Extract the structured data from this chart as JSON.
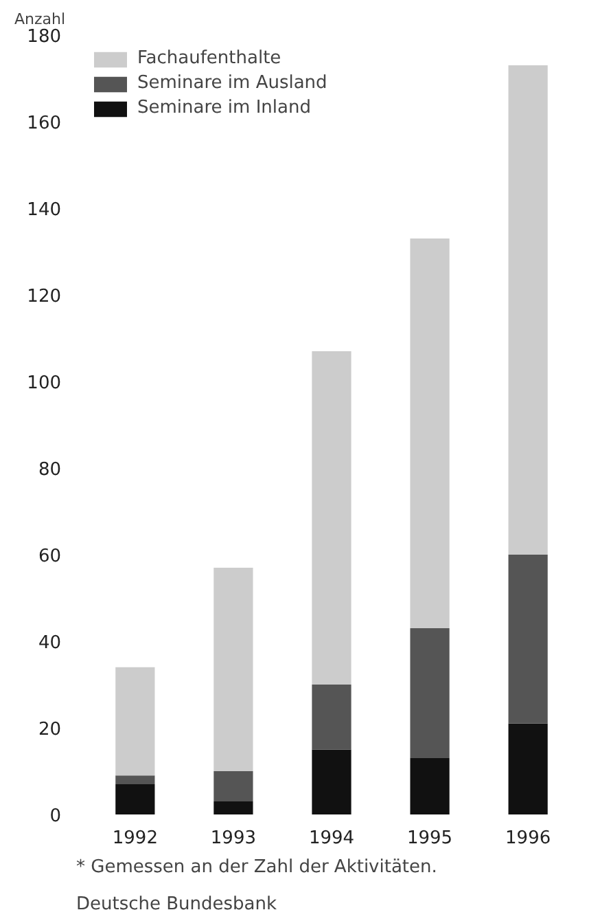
{
  "chart_data": {
    "type": "bar",
    "stacked": true,
    "ylabel": "Anzahl",
    "categories": [
      "1992",
      "1993",
      "1994",
      "1995",
      "1996"
    ],
    "series": [
      {
        "name": "Seminare im Inland",
        "color": "#111111",
        "values": [
          7,
          3,
          15,
          13,
          21
        ]
      },
      {
        "name": "Seminare im Ausland",
        "color": "#555555",
        "values": [
          2,
          7,
          15,
          30,
          39
        ]
      },
      {
        "name": "Fachaufenthalte",
        "color": "#cccccc",
        "values": [
          25,
          47,
          77,
          90,
          113
        ]
      }
    ],
    "ylim": [
      0,
      180
    ],
    "yticks": [
      0,
      20,
      40,
      60,
      80,
      100,
      120,
      140,
      160,
      180
    ],
    "grid": false,
    "legend": "top left",
    "annotations": [
      "* Gemessen an der Zahl der Aktivitäten.",
      "Deutsche Bundesbank"
    ]
  }
}
